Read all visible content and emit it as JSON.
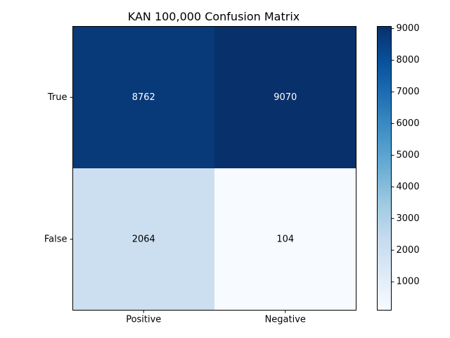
{
  "chart_data": {
    "type": "heatmap",
    "title": "KAN 100,000 Confusion Matrix",
    "xlabel": "",
    "ylabel": "",
    "x_categories": [
      "Positive",
      "Negative"
    ],
    "y_categories": [
      "True",
      "False"
    ],
    "values": [
      [
        8762,
        9070
      ],
      [
        2064,
        104
      ]
    ],
    "colormap": "Blues",
    "colorbar": {
      "ticks": [
        1000,
        2000,
        3000,
        4000,
        5000,
        6000,
        7000,
        8000,
        9000
      ],
      "range": [
        104,
        9070
      ]
    },
    "grid": false
  },
  "colors": {
    "text_dark_cell": "#ffffff",
    "text_light_cell": "#000000",
    "axis": "#000000"
  }
}
